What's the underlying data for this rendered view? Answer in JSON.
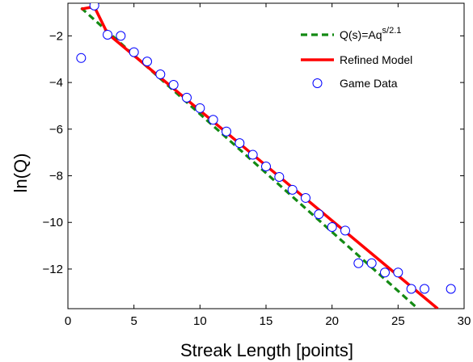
{
  "chart_data": {
    "type": "line",
    "xlabel": "Streak Length [points]",
    "ylabel": "ln(Q)",
    "xlim": [
      0,
      30
    ],
    "ylim": [
      -13.7,
      -0.6
    ],
    "xticks": [
      0,
      5,
      10,
      15,
      20,
      25,
      30
    ],
    "yticks": [
      -12,
      -10,
      -8,
      -6,
      -4,
      -2
    ],
    "grid": false,
    "legend_position": "top-right",
    "series": [
      {
        "name": "Q(s)=Aq",
        "name_superscript": "s/2.1",
        "style": "dashed",
        "color": "#138a13",
        "x": [
          1,
          26.5
        ],
        "y": [
          -0.8,
          -13.7
        ]
      },
      {
        "name": "Refined Model",
        "style": "solid",
        "color": "#ff0000",
        "x": [
          1,
          2,
          3,
          28
        ],
        "y": [
          -0.85,
          -0.75,
          -1.9,
          -13.7
        ]
      },
      {
        "name": "Game Data",
        "style": "markers",
        "color": "#0000ff",
        "x": [
          1,
          2,
          3,
          4,
          5,
          6,
          7,
          8,
          9,
          10,
          11,
          12,
          13,
          14,
          15,
          16,
          17,
          18,
          19,
          20,
          21,
          22,
          23,
          24,
          25,
          26,
          27,
          29
        ],
        "y": [
          -2.95,
          -0.7,
          -1.95,
          -2.0,
          -2.7,
          -3.1,
          -3.65,
          -4.1,
          -4.65,
          -5.1,
          -5.6,
          -6.1,
          -6.6,
          -7.1,
          -7.6,
          -8.05,
          -8.6,
          -8.95,
          -9.65,
          -10.2,
          -10.35,
          -11.75,
          -11.75,
          -12.15,
          -12.15,
          -12.85,
          -12.85,
          -12.85
        ]
      }
    ]
  }
}
